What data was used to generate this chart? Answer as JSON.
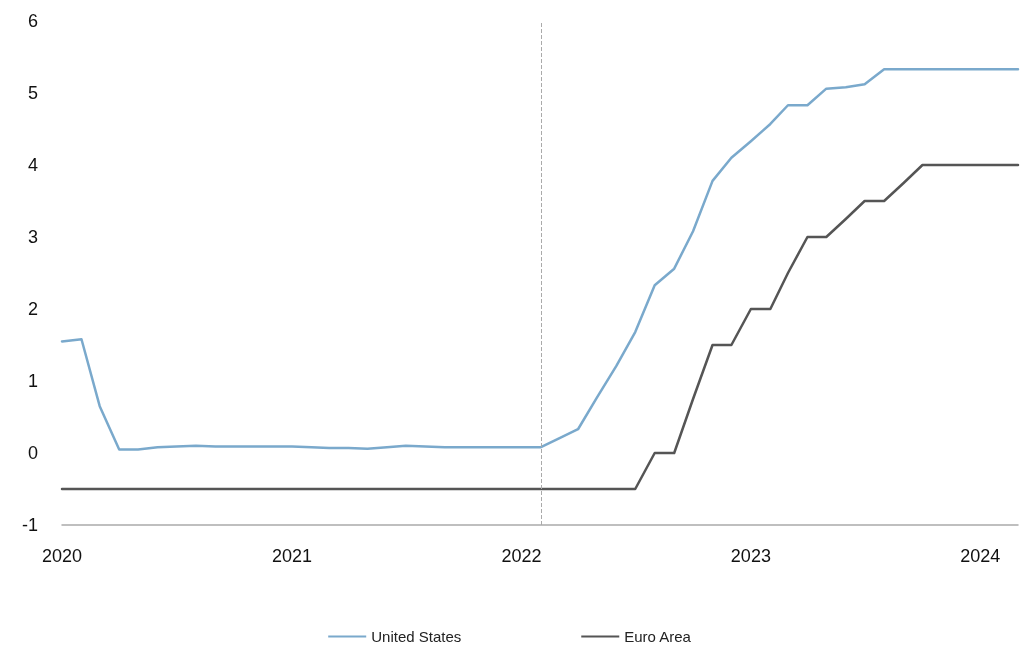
{
  "chart_data": {
    "type": "line",
    "x": [
      "2020-01",
      "2020-02",
      "2020-03",
      "2020-04",
      "2020-05",
      "2020-06",
      "2020-07",
      "2020-08",
      "2020-09",
      "2020-10",
      "2020-11",
      "2020-12",
      "2021-01",
      "2021-02",
      "2021-03",
      "2021-04",
      "2021-05",
      "2021-06",
      "2021-07",
      "2021-08",
      "2021-09",
      "2021-10",
      "2021-11",
      "2021-12",
      "2022-01",
      "2022-02",
      "2022-03",
      "2022-04",
      "2022-05",
      "2022-06",
      "2022-07",
      "2022-08",
      "2022-09",
      "2022-10",
      "2022-11",
      "2022-12",
      "2023-01",
      "2023-02",
      "2023-03",
      "2023-04",
      "2023-05",
      "2023-06",
      "2023-07",
      "2023-08",
      "2023-09",
      "2023-10",
      "2023-11",
      "2023-12",
      "2024-01",
      "2024-02",
      "2024-03"
    ],
    "series": [
      {
        "name": "United States",
        "color": "#7aa9cc",
        "values": [
          1.55,
          1.58,
          0.65,
          0.05,
          0.05,
          0.08,
          0.09,
          0.1,
          0.09,
          0.09,
          0.09,
          0.09,
          0.09,
          0.08,
          0.07,
          0.07,
          0.06,
          0.08,
          0.1,
          0.09,
          0.08,
          0.08,
          0.08,
          0.08,
          0.08,
          0.08,
          0.2,
          0.33,
          0.77,
          1.21,
          1.68,
          2.33,
          2.56,
          3.08,
          3.78,
          4.1,
          4.33,
          4.57,
          4.83,
          4.83,
          5.06,
          5.08,
          5.12,
          5.33,
          5.33,
          5.33,
          5.33,
          5.33,
          5.33,
          5.33,
          5.33
        ]
      },
      {
        "name": "Euro Area",
        "color": "#555555",
        "values": [
          -0.5,
          -0.5,
          -0.5,
          -0.5,
          -0.5,
          -0.5,
          -0.5,
          -0.5,
          -0.5,
          -0.5,
          -0.5,
          -0.5,
          -0.5,
          -0.5,
          -0.5,
          -0.5,
          -0.5,
          -0.5,
          -0.5,
          -0.5,
          -0.5,
          -0.5,
          -0.5,
          -0.5,
          -0.5,
          -0.5,
          -0.5,
          -0.5,
          -0.5,
          -0.5,
          -0.5,
          0,
          0,
          0.75,
          1.5,
          1.5,
          2,
          2,
          2.5,
          3,
          3,
          3.25,
          3.5,
          3.5,
          3.75,
          4,
          4,
          4,
          4,
          4,
          4
        ]
      }
    ],
    "xlim": [
      "2020-01",
      "2024-03"
    ],
    "xticks": [
      "2020",
      "2021",
      "2022",
      "2023",
      "2024"
    ],
    "ylim": [
      -1,
      6
    ],
    "yticks": [
      -1,
      0,
      1,
      2,
      3,
      4,
      5,
      6
    ],
    "ref_lines": [
      {
        "axis": "x",
        "value": "2022-02",
        "color": "#aaaaaa",
        "line_style": "dashed"
      }
    ],
    "grid": false,
    "legend": "bottom",
    "marker": "none",
    "line_style": "solid"
  }
}
